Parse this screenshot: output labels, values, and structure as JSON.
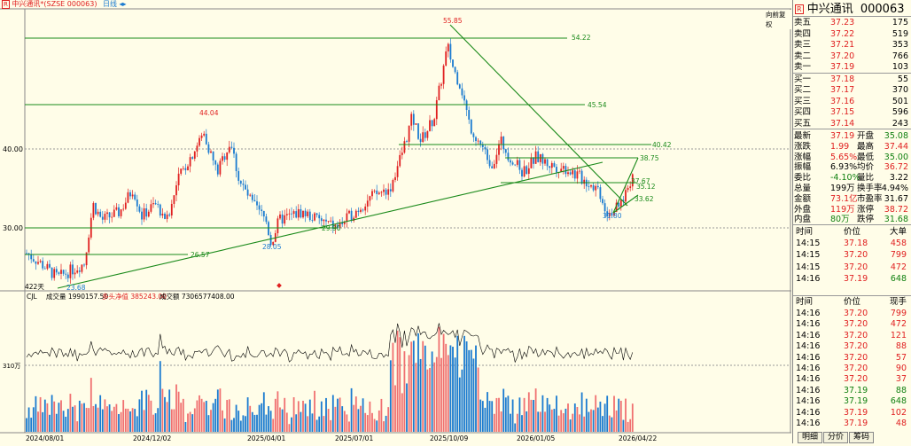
{
  "header": {
    "r_icon": "R",
    "title": "中兴通讯*(SZSE 000063)",
    "period": "日线",
    "right_label": "向前复权"
  },
  "price_axis": {
    "labels": [
      "40.00",
      "30.00"
    ]
  },
  "annotations": [
    "55.85",
    "54.22",
    "45.54",
    "44.04",
    "40.42",
    "38.75",
    "37.67",
    "35.12",
    "33.62",
    "31.80",
    "29.90",
    "28.05",
    "26.57",
    "23.68"
  ],
  "count_label": "422天",
  "volume_header": {
    "indicator": "CJL",
    "vol_label": "成交量 1990157.50",
    "net_label": "多头净值 385243.00",
    "amount_label": "成交额 7306577408.00",
    "axis_label": "310万"
  },
  "dates": [
    "2024/08/01",
    "2024/12/02",
    "2025/04/01",
    "2025/07/01",
    "2025/10/09",
    "2026/01/05",
    "2026/04/22"
  ],
  "quote": {
    "name": "中兴通讯",
    "code": "000063",
    "r_icon": "R",
    "asks": [
      {
        "label": "卖五",
        "price": "37.23",
        "vol": "175"
      },
      {
        "label": "卖四",
        "price": "37.22",
        "vol": "519"
      },
      {
        "label": "卖三",
        "price": "37.21",
        "vol": "353"
      },
      {
        "label": "卖二",
        "price": "37.20",
        "vol": "766"
      },
      {
        "label": "卖一",
        "price": "37.19",
        "vol": "103"
      }
    ],
    "bids": [
      {
        "label": "买一",
        "price": "37.18",
        "vol": "55"
      },
      {
        "label": "买二",
        "price": "37.17",
        "vol": "370"
      },
      {
        "label": "买三",
        "price": "37.16",
        "vol": "501"
      },
      {
        "label": "买四",
        "price": "37.15",
        "vol": "596"
      },
      {
        "label": "买五",
        "price": "37.14",
        "vol": "243"
      }
    ],
    "stats": [
      {
        "l1": "最新",
        "v1": "37.19",
        "c1": "red",
        "l2": "开盘",
        "v2": "35.08",
        "c2": "green"
      },
      {
        "l1": "涨跌",
        "v1": "1.99",
        "c1": "red",
        "l2": "最高",
        "v2": "37.44",
        "c2": "red"
      },
      {
        "l1": "涨幅",
        "v1": "5.65%",
        "c1": "red",
        "l2": "最低",
        "v2": "35.00",
        "c2": "green"
      },
      {
        "l1": "振幅",
        "v1": "6.93%",
        "c1": "blk",
        "l2": "均价",
        "v2": "36.72",
        "c2": "red"
      },
      {
        "l1": "委比",
        "v1": "-4.10%",
        "c1": "green",
        "l2": "量比",
        "v2": "3.22",
        "c2": "blk"
      },
      {
        "l1": "总量",
        "v1": "199万",
        "c1": "blk",
        "l2": "换手率",
        "v2": "4.94%",
        "c2": "blk"
      },
      {
        "l1": "金额",
        "v1": "73.1亿",
        "c1": "red",
        "l2": "市盈率",
        "v2": "31.67",
        "c2": "blk"
      },
      {
        "l1": "外盘",
        "v1": "119万",
        "c1": "red",
        "l2": "涨停",
        "v2": "38.72",
        "c2": "red"
      },
      {
        "l1": "内盘",
        "v1": "80万",
        "c1": "green",
        "l2": "跌停",
        "v2": "31.68",
        "c2": "green"
      }
    ],
    "ticks_header": {
      "time": "时间",
      "price": "价位",
      "vol": "大单"
    },
    "ticks": [
      {
        "time": "14:15",
        "price": "37.18",
        "vol": "458",
        "c": "red"
      },
      {
        "time": "14:15",
        "price": "37.20",
        "vol": "799",
        "c": "red"
      },
      {
        "time": "14:15",
        "price": "37.20",
        "vol": "472",
        "c": "red"
      },
      {
        "time": "14:16",
        "price": "37.19",
        "vol": "648",
        "c": "green"
      }
    ],
    "trades_header": {
      "time": "时间",
      "price": "价位",
      "vol": "现手"
    },
    "trades": [
      {
        "time": "14:16",
        "price": "37.20",
        "vol": "799",
        "c": "red"
      },
      {
        "time": "14:16",
        "price": "37.20",
        "vol": "472",
        "c": "red"
      },
      {
        "time": "14:16",
        "price": "37.20",
        "vol": "121",
        "c": "red"
      },
      {
        "time": "14:16",
        "price": "37.20",
        "vol": "88",
        "c": "red"
      },
      {
        "time": "14:16",
        "price": "37.20",
        "vol": "57",
        "c": "red"
      },
      {
        "time": "14:16",
        "price": "37.20",
        "vol": "90",
        "c": "red"
      },
      {
        "time": "14:16",
        "price": "37.20",
        "vol": "37",
        "c": "red"
      },
      {
        "time": "14:16",
        "price": "37.19",
        "vol": "88",
        "c": "green"
      },
      {
        "time": "14:16",
        "price": "37.19",
        "vol": "648",
        "c": "green"
      },
      {
        "time": "14:16",
        "price": "37.19",
        "vol": "102",
        "c": "red"
      },
      {
        "time": "14:16",
        "price": "37.19",
        "vol": "48",
        "c": "red"
      }
    ],
    "tabs": [
      "明细",
      "分价",
      "筹码"
    ]
  },
  "colors": {
    "up": "#e02020",
    "down": "#1a7ad0",
    "trend": "#1a8a1a",
    "bg": "#fffde8"
  }
}
